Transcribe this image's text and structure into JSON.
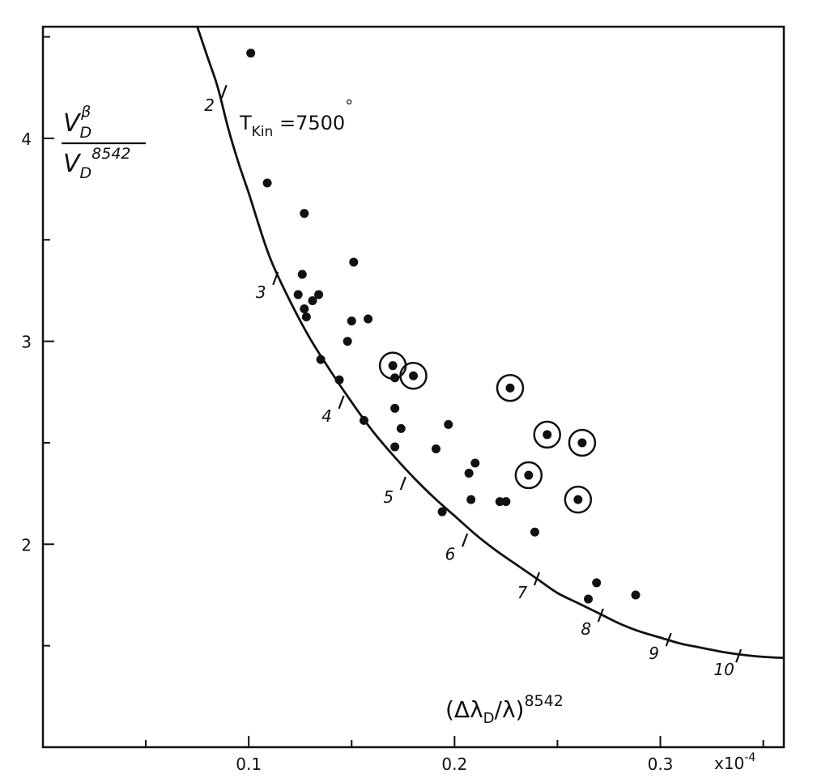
{
  "chart_data": {
    "type": "scatter",
    "title": "",
    "xaxis": {
      "label_main": "(Δλ",
      "label_sub": "D",
      "label_tail": "/λ)",
      "label_sup": "8542",
      "lim": [
        0.0,
        0.36
      ],
      "ticks": [
        0.1,
        0.2,
        0.3
      ],
      "tick_labels": [
        "0.1",
        "0.2",
        "0.3"
      ],
      "minor_ticks": [
        0.05,
        0.15,
        0.25,
        0.35
      ],
      "multiplier_main": "x10",
      "multiplier_sup": "-4"
    },
    "yaxis": {
      "label_num_main": "V",
      "label_num_sub": "D",
      "label_num_sup": "β",
      "label_den_main": "V",
      "label_den_sub": "D",
      "label_den_sup": "8542",
      "lim": [
        1.0,
        4.55
      ],
      "ticks": [
        2,
        3,
        4
      ],
      "tick_labels": [
        "2",
        "3",
        "4"
      ],
      "minor_ticks": [
        1.5,
        2.5,
        3.5,
        4.5
      ]
    },
    "annotation": {
      "main": "T",
      "sub": "Kin",
      "rest": " =7500",
      "degree": "°"
    },
    "grid": false,
    "curve": {
      "name": "",
      "points": [
        [
          0.075,
          4.55
        ],
        [
          0.08,
          4.4
        ],
        [
          0.085,
          4.25
        ],
        [
          0.09,
          4.05
        ],
        [
          0.095,
          3.88
        ],
        [
          0.1,
          3.73
        ],
        [
          0.11,
          3.42
        ],
        [
          0.12,
          3.2
        ],
        [
          0.13,
          3.01
        ],
        [
          0.14,
          2.85
        ],
        [
          0.15,
          2.7
        ],
        [
          0.16,
          2.56
        ],
        [
          0.17,
          2.44
        ],
        [
          0.18,
          2.33
        ],
        [
          0.19,
          2.23
        ],
        [
          0.2,
          2.14
        ],
        [
          0.21,
          2.05
        ],
        [
          0.22,
          1.97
        ],
        [
          0.23,
          1.9
        ],
        [
          0.24,
          1.83
        ],
        [
          0.25,
          1.76
        ],
        [
          0.26,
          1.71
        ],
        [
          0.27,
          1.66
        ],
        [
          0.28,
          1.61
        ],
        [
          0.29,
          1.57
        ],
        [
          0.3,
          1.54
        ],
        [
          0.31,
          1.51
        ],
        [
          0.32,
          1.49
        ],
        [
          0.33,
          1.47
        ],
        [
          0.34,
          1.455
        ],
        [
          0.35,
          1.445
        ],
        [
          0.36,
          1.44
        ]
      ],
      "temperature_marks": [
        {
          "label": "2",
          "x": 0.088,
          "y": 4.23
        },
        {
          "label": "3",
          "x": 0.113,
          "y": 3.31
        },
        {
          "label": "4",
          "x": 0.145,
          "y": 2.7
        },
        {
          "label": "5",
          "x": 0.175,
          "y": 2.3
        },
        {
          "label": "6",
          "x": 0.205,
          "y": 2.02
        },
        {
          "label": "7",
          "x": 0.24,
          "y": 1.83
        },
        {
          "label": "8",
          "x": 0.271,
          "y": 1.65
        },
        {
          "label": "9",
          "x": 0.304,
          "y": 1.53
        },
        {
          "label": "10",
          "x": 0.338,
          "y": 1.45
        }
      ]
    },
    "series": [
      {
        "name": "",
        "marker": "dot",
        "points": [
          [
            0.101,
            4.42
          ],
          [
            0.109,
            3.78
          ],
          [
            0.127,
            3.63
          ],
          [
            0.126,
            3.33
          ],
          [
            0.124,
            3.23
          ],
          [
            0.127,
            3.16
          ],
          [
            0.131,
            3.2
          ],
          [
            0.134,
            3.23
          ],
          [
            0.128,
            3.12
          ],
          [
            0.151,
            3.39
          ],
          [
            0.15,
            3.1
          ],
          [
            0.158,
            3.11
          ],
          [
            0.148,
            3.0
          ],
          [
            0.135,
            2.91
          ],
          [
            0.144,
            2.81
          ],
          [
            0.171,
            2.82
          ],
          [
            0.171,
            2.67
          ],
          [
            0.156,
            2.61
          ],
          [
            0.174,
            2.57
          ],
          [
            0.171,
            2.48
          ],
          [
            0.191,
            2.47
          ],
          [
            0.197,
            2.59
          ],
          [
            0.207,
            2.35
          ],
          [
            0.21,
            2.4
          ],
          [
            0.208,
            2.22
          ],
          [
            0.194,
            2.16
          ],
          [
            0.222,
            2.21
          ],
          [
            0.225,
            2.21
          ],
          [
            0.239,
            2.06
          ],
          [
            0.269,
            1.81
          ],
          [
            0.265,
            1.73
          ],
          [
            0.288,
            1.75
          ]
        ]
      },
      {
        "name": "",
        "marker": "circled-dot",
        "points": [
          [
            0.17,
            2.88
          ],
          [
            0.18,
            2.83
          ],
          [
            0.227,
            2.77
          ],
          [
            0.245,
            2.54
          ],
          [
            0.262,
            2.5
          ],
          [
            0.236,
            2.34
          ],
          [
            0.26,
            2.22
          ]
        ]
      }
    ]
  }
}
